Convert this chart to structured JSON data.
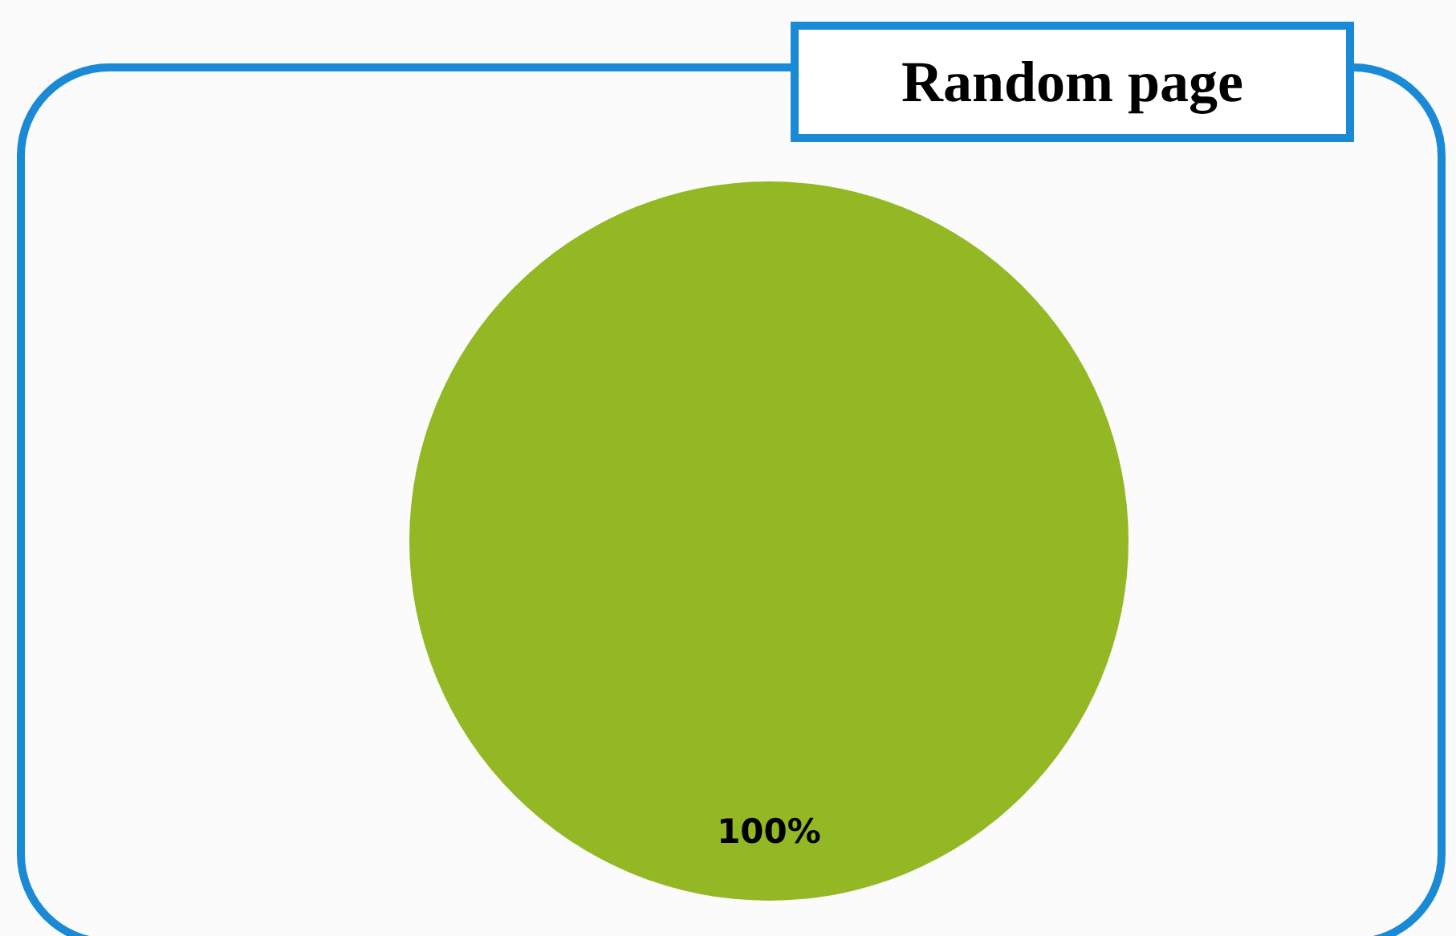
{
  "chart_data": {
    "type": "pie",
    "title": "Random page",
    "categories": [
      null
    ],
    "values": [
      100
    ],
    "colors": [
      "#93b824"
    ],
    "value_labels": [
      "100%"
    ]
  }
}
